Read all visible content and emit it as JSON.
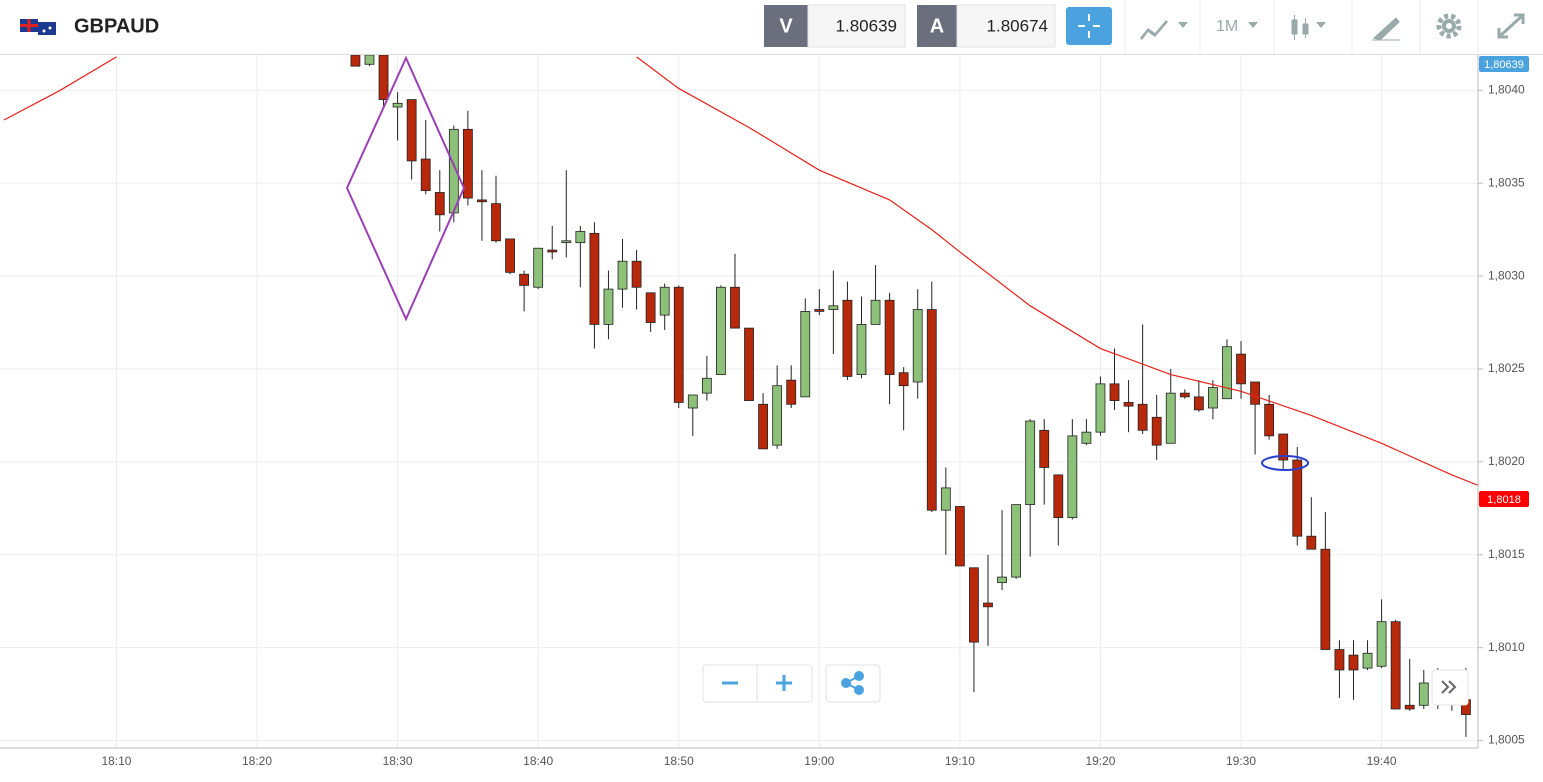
{
  "header": {
    "symbol": "GBPAUD",
    "sell_label": "V",
    "sell_price": "1.80639",
    "buy_label": "A",
    "buy_price": "1.80674",
    "timeframe": "1M"
  },
  "chart_data": {
    "type": "candlestick",
    "x": [
      "18:27",
      "18:28",
      "18:29",
      "18:30",
      "18:31",
      "18:32",
      "18:33",
      "18:34",
      "18:35",
      "18:36",
      "18:37",
      "18:38",
      "18:39",
      "18:40",
      "18:41",
      "18:42",
      "18:43",
      "18:44",
      "18:45",
      "18:46",
      "18:47",
      "18:48",
      "18:49",
      "18:50",
      "18:51",
      "18:52",
      "18:53",
      "18:54",
      "18:55",
      "18:56",
      "18:57",
      "18:58",
      "18:59",
      "19:00",
      "19:01",
      "19:02",
      "19:03",
      "19:04",
      "19:05",
      "19:06",
      "19:07",
      "19:08",
      "19:09",
      "19:10",
      "19:11",
      "19:12",
      "19:13",
      "19:14",
      "19:15",
      "19:16",
      "19:17",
      "19:18",
      "19:19",
      "19:20",
      "19:21",
      "19:22",
      "19:23",
      "19:24",
      "19:25",
      "19:26",
      "19:27",
      "19:28",
      "19:29",
      "19:30",
      "19:31",
      "19:32",
      "19:33",
      "19:34",
      "19:35",
      "19:36",
      "19:37",
      "19:38",
      "19:39",
      "19:40",
      "19:41",
      "19:42",
      "19:43",
      "19:44",
      "19:45",
      "19:46"
    ],
    "open": [
      1.80419,
      1.80414,
      1.80419,
      1.80391,
      1.80395,
      1.80363,
      1.80345,
      1.80334,
      1.80379,
      1.80341,
      1.80339,
      1.8032,
      1.80301,
      1.80294,
      1.80314,
      1.80318,
      1.80318,
      1.80323,
      1.80274,
      1.80293,
      1.80308,
      1.80291,
      1.80279,
      1.80294,
      1.80229,
      1.80237,
      1.80247,
      1.80294,
      1.80272,
      1.80231,
      1.80209,
      1.80244,
      1.80235,
      1.80282,
      1.80282,
      1.80287,
      1.80247,
      1.80274,
      1.80287,
      1.80248,
      1.80243,
      1.80282,
      1.80174,
      1.80176,
      1.80143,
      1.80124,
      1.80135,
      1.80138,
      1.80177,
      1.80217,
      1.80193,
      1.8017,
      1.8021,
      1.80216,
      1.80242,
      1.80232,
      1.80231,
      1.80224,
      1.8021,
      1.80237,
      1.80235,
      1.80229,
      1.80234,
      1.80258,
      1.80243,
      1.80231,
      1.80215,
      1.80201,
      1.8016,
      1.80153,
      1.80099,
      1.80096,
      1.80089,
      1.8009,
      1.80114,
      1.80069,
      1.80069,
      1.80072,
      1.8008,
      1.80072
    ],
    "high": [
      1.80419,
      1.80419,
      1.80419,
      1.80399,
      1.80395,
      1.80384,
      1.80357,
      1.80381,
      1.80389,
      1.80357,
      1.80354,
      1.8032,
      1.80303,
      1.80315,
      1.80327,
      1.80357,
      1.80327,
      1.80329,
      1.80303,
      1.8032,
      1.80314,
      1.80291,
      1.80296,
      1.80295,
      1.80236,
      1.80257,
      1.80295,
      1.80312,
      1.80272,
      1.80237,
      1.80252,
      1.80252,
      1.80288,
      1.80293,
      1.80303,
      1.80297,
      1.80289,
      1.80306,
      1.80291,
      1.80251,
      1.80293,
      1.80297,
      1.80197,
      1.80176,
      1.80143,
      1.8015,
      1.80174,
      1.80177,
      1.80223,
      1.80223,
      1.80193,
      1.80223,
      1.80223,
      1.80246,
      1.80261,
      1.80244,
      1.80274,
      1.80236,
      1.8025,
      1.80239,
      1.80244,
      1.80244,
      1.80266,
      1.80265,
      1.80243,
      1.80236,
      1.80215,
      1.80208,
      1.80181,
      1.80173,
      1.80104,
      1.80104,
      1.80104,
      1.80126,
      1.80115,
      1.80094,
      1.80088,
      1.80089,
      1.80088,
      1.80089
    ],
    "low": [
      1.80413,
      1.80413,
      1.8039,
      1.80373,
      1.80352,
      1.80344,
      1.80324,
      1.80329,
      1.80338,
      1.80319,
      1.80318,
      1.80301,
      1.80281,
      1.80293,
      1.80309,
      1.8031,
      1.80294,
      1.80261,
      1.80266,
      1.80283,
      1.80282,
      1.8027,
      1.80271,
      1.80229,
      1.80214,
      1.80233,
      1.80247,
      1.80272,
      1.80233,
      1.80207,
      1.80207,
      1.80229,
      1.80235,
      1.80279,
      1.80258,
      1.80244,
      1.80245,
      1.80274,
      1.80231,
      1.80217,
      1.80234,
      1.80173,
      1.8015,
      1.80144,
      1.80076,
      1.80101,
      1.80131,
      1.80137,
      1.80149,
      1.80177,
      1.80155,
      1.80169,
      1.80209,
      1.80214,
      1.80228,
      1.80216,
      1.80215,
      1.80201,
      1.8021,
      1.80234,
      1.80227,
      1.80223,
      1.80234,
      1.80234,
      1.80204,
      1.80212,
      1.80196,
      1.80155,
      1.80153,
      1.80099,
      1.80073,
      1.80072,
      1.80088,
      1.80089,
      1.80067,
      1.80066,
      1.80067,
      1.80067,
      1.80066,
      1.80052
    ],
    "close": [
      1.80413,
      1.80419,
      1.80395,
      1.80393,
      1.80362,
      1.80346,
      1.80333,
      1.80379,
      1.80342,
      1.8034,
      1.80319,
      1.80302,
      1.80295,
      1.80315,
      1.80313,
      1.80319,
      1.80324,
      1.80274,
      1.80293,
      1.80308,
      1.80294,
      1.80275,
      1.80294,
      1.80232,
      1.80236,
      1.80245,
      1.80294,
      1.80272,
      1.80233,
      1.80207,
      1.80241,
      1.80231,
      1.80281,
      1.80281,
      1.80284,
      1.80246,
      1.80274,
      1.80287,
      1.80247,
      1.80241,
      1.80282,
      1.80174,
      1.80186,
      1.80144,
      1.80103,
      1.80122,
      1.80138,
      1.80177,
      1.80222,
      1.80197,
      1.8017,
      1.80214,
      1.80216,
      1.80242,
      1.80233,
      1.8023,
      1.80217,
      1.80209,
      1.80237,
      1.80235,
      1.80228,
      1.8024,
      1.80262,
      1.80242,
      1.80231,
      1.80214,
      1.80201,
      1.8016,
      1.80153,
      1.80099,
      1.80088,
      1.80088,
      1.80097,
      1.80114,
      1.80067,
      1.80067,
      1.80081,
      1.80081,
      1.80072,
      1.80064
    ],
    "up_color": "#8dc17a",
    "down_color": "#b8290c",
    "line": {
      "x": [
        "18:02",
        "18:06",
        "18:10",
        "18:30",
        "18:47",
        "18:50",
        "18:55",
        "19:00",
        "19:05",
        "19:08",
        "19:10",
        "19:15",
        "19:20",
        "19:25",
        "19:30",
        "19:35",
        "19:40",
        "19:45",
        "19:47"
      ],
      "values": [
        1.80384,
        1.804,
        1.80418,
        null,
        1.80418,
        1.80401,
        1.8038,
        1.80357,
        1.80341,
        1.80325,
        1.80313,
        1.80284,
        1.80261,
        1.80247,
        1.80238,
        1.80225,
        1.8021,
        1.80193,
        1.80187
      ],
      "color": "#e8221a"
    },
    "price_markers": [
      {
        "value": 1.80639,
        "label": "1,80639",
        "color": "#4aa3df"
      },
      {
        "value": 1.8018,
        "label": "1,8018",
        "color": "#ff0000"
      }
    ],
    "xlim": [
      "18:02",
      "19:47"
    ],
    "xticks": [
      "18:10",
      "18:20",
      "18:30",
      "18:40",
      "18:50",
      "19:00",
      "19:10",
      "19:20",
      "19:30",
      "19:40"
    ],
    "ylim": [
      1.80046,
      1.80419
    ],
    "yticks": [
      {
        "value": 1.8005,
        "label": "1,8005"
      },
      {
        "value": 1.801,
        "label": "1,8010"
      },
      {
        "value": 1.8015,
        "label": "1,8015"
      },
      {
        "value": 1.802,
        "label": "1,8020"
      },
      {
        "value": 1.8025,
        "label": "1,8025"
      },
      {
        "value": 1.803,
        "label": "1,8030"
      },
      {
        "value": 1.8035,
        "label": "1,8035"
      },
      {
        "value": 1.804,
        "label": "1,8040"
      }
    ],
    "grid": true
  }
}
